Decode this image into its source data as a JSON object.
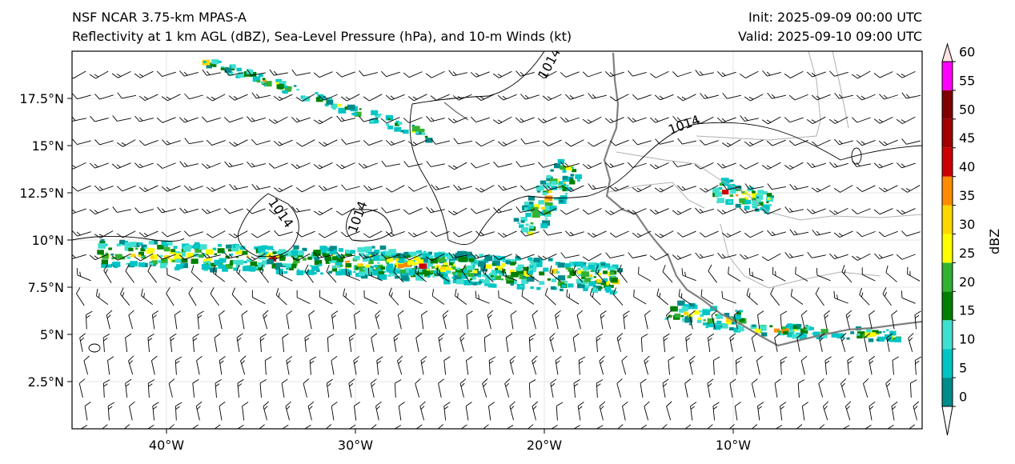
{
  "title": {
    "line1": "NSF NCAR 3.75-km MPAS-A",
    "line2": "Reflectivity at 1 km AGL (dBZ), Sea-Level Pressure (hPa), and 10-m Winds (kt)",
    "init": "Init: 2025-09-09 00:00 UTC",
    "valid": "Valid: 2025-09-10 09:00 UTC"
  },
  "map": {
    "lon_range": [
      -45,
      0
    ],
    "lat_range": [
      0,
      20
    ],
    "lon_ticks": [
      {
        "value": -40,
        "label": "40°W"
      },
      {
        "value": -30,
        "label": "30°W"
      },
      {
        "value": -20,
        "label": "20°W"
      },
      {
        "value": -10,
        "label": "10°W"
      }
    ],
    "lat_ticks": [
      {
        "value": 2.5,
        "label": "2.5°N"
      },
      {
        "value": 5,
        "label": "5°N"
      },
      {
        "value": 7.5,
        "label": "7.5°N"
      },
      {
        "value": 10,
        "label": "10°N"
      },
      {
        "value": 12.5,
        "label": "12.5°N"
      },
      {
        "value": 15,
        "label": "15°N"
      },
      {
        "value": 17.5,
        "label": "17.5°N"
      }
    ],
    "isobar_label": "1014",
    "coast_color": "#808080",
    "border_color": "#b0b0b0",
    "isobar_color": "#000000",
    "storm_bands": [
      {
        "lon1": -43.5,
        "lat1": 9.3,
        "lon2": -24,
        "lat2": 8.6,
        "width": 1.4
      },
      {
        "lon1": -30,
        "lat1": 8.9,
        "lon2": -16,
        "lat2": 7.9,
        "width": 1.6
      },
      {
        "lon1": -21,
        "lat1": 10.5,
        "lon2": -18.5,
        "lat2": 14.0,
        "width": 1.5
      },
      {
        "lon1": -13.5,
        "lat1": 6.2,
        "lon2": -9.5,
        "lat2": 5.7,
        "width": 1.1
      },
      {
        "lon1": -11,
        "lat1": 12.7,
        "lon2": -8,
        "lat2": 12.0,
        "width": 1.3
      },
      {
        "lon1": -38,
        "lat1": 19.5,
        "lon2": -26,
        "lat2": 15.5,
        "width": 0.5
      },
      {
        "lon1": -9,
        "lat1": 5.3,
        "lon2": -1,
        "lat2": 4.9,
        "width": 0.6
      }
    ]
  },
  "colorbar": {
    "label": "dBZ",
    "levels": [
      0,
      5,
      10,
      15,
      20,
      25,
      30,
      35,
      40,
      45,
      50,
      55,
      60
    ],
    "colors": [
      "#008b8b",
      "#00c5c5",
      "#40e0d0",
      "#008000",
      "#32b232",
      "#ffff00",
      "#ffd700",
      "#ff8c00",
      "#cc0000",
      "#a00000",
      "#800000",
      "#ff00ff",
      "#ffe4e1"
    ]
  }
}
